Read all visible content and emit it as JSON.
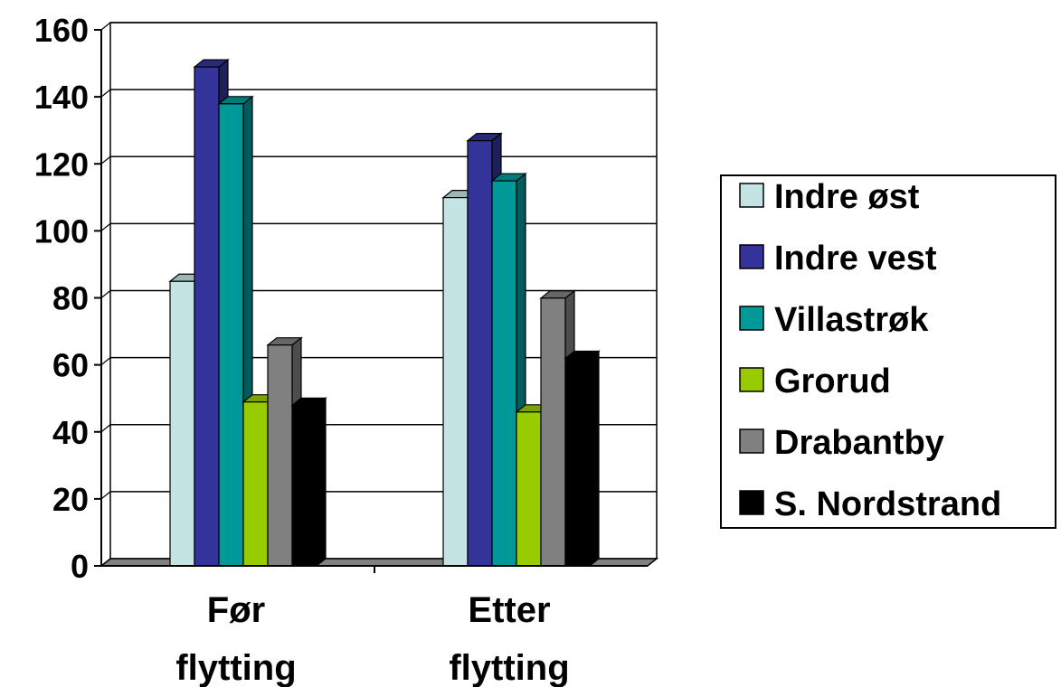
{
  "chart_data": {
    "type": "bar",
    "style": "3d-clustered",
    "title": "",
    "xlabel": "",
    "ylabel": "",
    "ylim": [
      0,
      160
    ],
    "yticks": [
      0,
      20,
      40,
      60,
      80,
      100,
      120,
      140,
      160
    ],
    "grid": true,
    "legend_position": "right",
    "categories": [
      [
        "Før",
        "flytting"
      ],
      [
        "Etter",
        "flytting"
      ]
    ],
    "series": [
      {
        "name": "Indre øst",
        "color": "#c4e4e4",
        "values": [
          86,
          111
        ]
      },
      {
        "name": "Indre vest",
        "color": "#333399",
        "values": [
          150,
          128
        ]
      },
      {
        "name": "Villastrøk",
        "color": "#009999",
        "values": [
          139,
          116
        ]
      },
      {
        "name": "Grorud",
        "color": "#99cc00",
        "values": [
          50,
          47
        ]
      },
      {
        "name": "Drabantby",
        "color": "#808080",
        "values": [
          67,
          81
        ]
      },
      {
        "name": "S. Nordstrand",
        "color": "#000000",
        "values": [
          49,
          63
        ]
      }
    ]
  }
}
